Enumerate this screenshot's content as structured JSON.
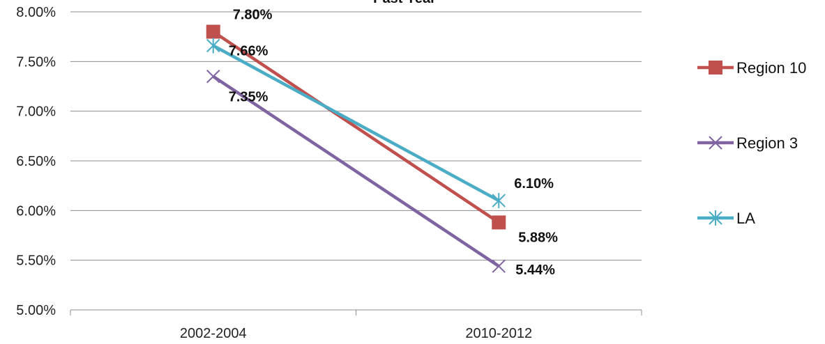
{
  "chart_data": {
    "type": "line",
    "title": "Past Year",
    "xlabel": "",
    "ylabel": "",
    "categories": [
      "2002-2004",
      "2010-2012"
    ],
    "y_ticks": [
      "5.00%",
      "5.50%",
      "6.00%",
      "6.50%",
      "7.00%",
      "7.50%",
      "8.00%"
    ],
    "ylim": [
      5.0,
      8.0
    ],
    "grid": true,
    "legend_position": "right",
    "series": [
      {
        "name": "Region 10",
        "values": [
          7.8,
          5.88
        ],
        "labels": [
          "7.80%",
          "5.88%"
        ],
        "color": "#c0504d",
        "marker": "square"
      },
      {
        "name": "Region 3",
        "values": [
          7.35,
          5.44
        ],
        "labels": [
          "7.35%",
          "5.44%"
        ],
        "color": "#8064a2",
        "marker": "x"
      },
      {
        "name": "LA",
        "values": [
          7.66,
          6.1
        ],
        "labels": [
          "7.66%",
          "6.10%"
        ],
        "color": "#4bacc6",
        "marker": "asterisk"
      }
    ]
  }
}
